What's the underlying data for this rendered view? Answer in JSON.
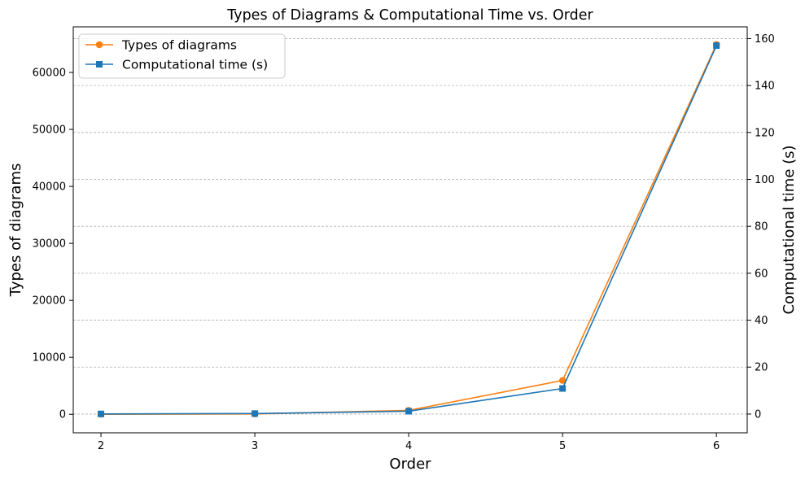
{
  "chart_data": {
    "type": "line",
    "title": "Types of Diagrams & Computational Time vs. Order",
    "xlabel": "Order",
    "ylabel_left": "Types of diagrams",
    "ylabel_right": "Computational time (s)",
    "x": [
      2,
      3,
      4,
      5,
      6
    ],
    "xlim": [
      1.82,
      6.2
    ],
    "ylim_left": [
      -3250,
      68000
    ],
    "ylim_right": [
      -8,
      165
    ],
    "yticks_left": [
      0,
      10000,
      20000,
      30000,
      40000,
      50000,
      60000
    ],
    "yticks_right": [
      0,
      20,
      40,
      60,
      80,
      100,
      120,
      140,
      160
    ],
    "grid": "horizontal dashed lines at right-axis ticks",
    "legend_position": "upper-left",
    "series": [
      {
        "name": "Types of diagrams",
        "axis": "left",
        "marker": "circle",
        "color": "#ff7f0e",
        "values": [
          6,
          66,
          683,
          5934,
          64894
        ]
      },
      {
        "name": "Computational time (s)",
        "axis": "right",
        "marker": "square",
        "color": "#1f77b4",
        "values": [
          0.05,
          0.2,
          1.2,
          10.9,
          157
        ]
      }
    ]
  }
}
